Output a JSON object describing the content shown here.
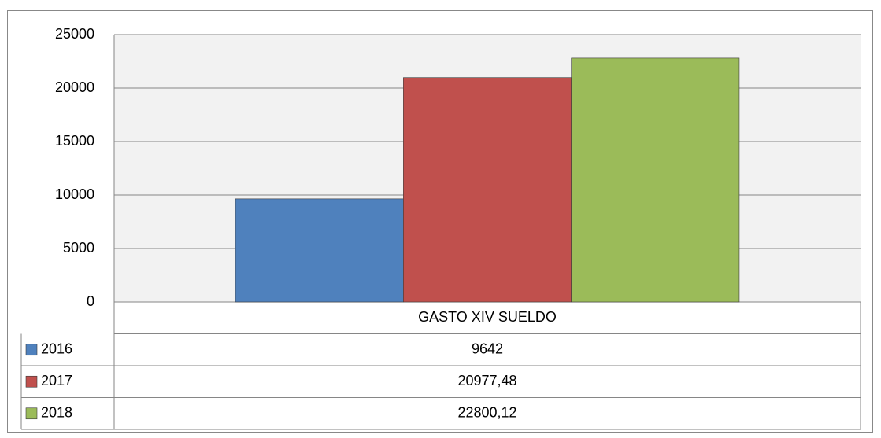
{
  "chart_data": {
    "type": "bar",
    "categories": [
      "GASTO XIV SUELDO"
    ],
    "series": [
      {
        "name": "2016",
        "color": "#4f81bd",
        "values": [
          9642
        ]
      },
      {
        "name": "2017",
        "color": "#c0504d",
        "values": [
          20977.48
        ],
        "value_labels": [
          "20977,48"
        ]
      },
      {
        "name": "2018",
        "color": "#9bbb59",
        "values": [
          22800.12
        ],
        "value_labels": [
          "22800,12"
        ]
      }
    ],
    "ylim": [
      0,
      25000
    ],
    "yticks": [
      0,
      5000,
      10000,
      15000,
      20000,
      25000
    ],
    "grid": true,
    "data_table": true
  }
}
